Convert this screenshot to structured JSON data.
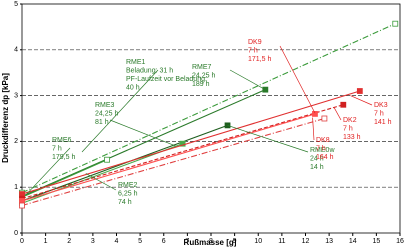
{
  "chart_data": {
    "type": "line",
    "x_label": "Rußmasse [g]",
    "y_label": "Druckdifferenz dp [kPa]",
    "xlim": [
      0,
      16
    ],
    "xticks": [
      0,
      1,
      2,
      3,
      4,
      5,
      6,
      7,
      8,
      9,
      10,
      11,
      12,
      13,
      14,
      15,
      16
    ],
    "ylim": [
      0,
      5
    ],
    "yticks": [
      0,
      1,
      2,
      3,
      4,
      5
    ],
    "grid": true,
    "series": [
      {
        "color": "#3a9a3a",
        "dash": "6 2 1 2",
        "marker": "open",
        "x": [
          0,
          15.8
        ],
        "values": [
          0.88,
          4.57
        ]
      },
      {
        "color": "#2a7a2a",
        "dash": "",
        "marker": "filled",
        "x": [
          0,
          10.3
        ],
        "values": [
          0.8,
          3.13
        ]
      },
      {
        "color": "#3a9a3a",
        "dash": "",
        "marker": "open",
        "x": [
          0,
          3.6
        ],
        "values": [
          0.78,
          1.6
        ]
      },
      {
        "color": "#1f5f1f",
        "dash": "",
        "marker": "filled",
        "x": [
          0,
          8.7
        ],
        "values": [
          0.7,
          2.35
        ]
      },
      {
        "color": "#4aaa4a",
        "dash": "",
        "marker": "filled",
        "x": [
          0,
          6.8
        ],
        "values": [
          0.65,
          1.95
        ]
      },
      {
        "color": "#e03030",
        "dash": "",
        "marker": "filled",
        "x": [
          0,
          14.3
        ],
        "values": [
          0.85,
          3.1
        ]
      },
      {
        "color": "#d02020",
        "dash": "4 2",
        "marker": "filled",
        "x": [
          0,
          13.6
        ],
        "values": [
          0.75,
          2.8
        ]
      },
      {
        "color": "#ff5050",
        "dash": "",
        "marker": "filled",
        "x": [
          0,
          12.4
        ],
        "values": [
          0.7,
          2.6
        ]
      },
      {
        "color": "#e04040",
        "dash": "6 2 1 2",
        "marker": "open",
        "x": [
          0,
          12.8
        ],
        "values": [
          0.6,
          2.5
        ]
      }
    ],
    "annotations": [
      {
        "color": "#2a7a2a",
        "lines": [
          "RME1",
          "Beladung: 31 h",
          "PF-Laufzeit vor Beladung:",
          "40 h"
        ]
      },
      {
        "color": "#2a7a2a",
        "lines": [
          "RME7",
          "24,25 h",
          "189 h"
        ]
      },
      {
        "color": "#2a7a2a",
        "lines": [
          "RME3",
          "24,25 h",
          "81 h"
        ]
      },
      {
        "color": "#2a7a2a",
        "lines": [
          "RME6",
          "7 h",
          "179,5 h"
        ]
      },
      {
        "color": "#2a7a2a",
        "lines": [
          "RME2",
          "6,25 h",
          "74 h"
        ]
      },
      {
        "color": "#2a7a2a",
        "lines": [
          "RME0w",
          "24 h",
          "14 h"
        ]
      },
      {
        "color": "#e02020",
        "lines": [
          "DK9",
          "7 h",
          "171,5 h"
        ]
      },
      {
        "color": "#e02020",
        "lines": [
          "DK3",
          "7 h",
          "141 h"
        ]
      },
      {
        "color": "#e02020",
        "lines": [
          "DK2",
          "7 h",
          "133 h"
        ]
      },
      {
        "color": "#e02020",
        "lines": [
          "DK8",
          "7 h",
          "164 h"
        ]
      }
    ]
  }
}
